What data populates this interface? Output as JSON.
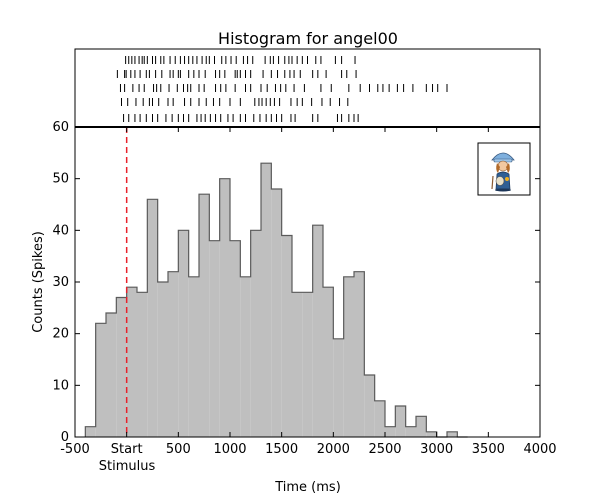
{
  "chart_data": {
    "type": "bar",
    "title": "Histogram for angel00",
    "xlabel": "Time (ms)",
    "ylabel": "Counts (Spikes)",
    "xlim": [
      -500,
      4000
    ],
    "ylim": [
      0,
      60
    ],
    "x_ticks": [
      -500,
      0,
      500,
      1000,
      1500,
      2000,
      2500,
      3000,
      3500,
      4000
    ],
    "x_tick_labels": [
      "-500",
      "Start",
      "500",
      "1000",
      "1500",
      "2000",
      "2500",
      "3000",
      "3500",
      "4000"
    ],
    "y_ticks": [
      0,
      10,
      20,
      30,
      40,
      50,
      60
    ],
    "y_tick_labels": [
      "0",
      "10",
      "20",
      "30",
      "40",
      "50",
      "60"
    ],
    "stimulus_label": "Stimulus",
    "stimulus_x": 0,
    "bin_width": 100,
    "bin_starts": [
      -400,
      -300,
      -200,
      -100,
      0,
      100,
      200,
      300,
      400,
      500,
      600,
      700,
      800,
      900,
      1000,
      1100,
      1200,
      1300,
      1400,
      1500,
      1600,
      1700,
      1800,
      1900,
      2000,
      2100,
      2200,
      2300,
      2400,
      2500,
      2600,
      2700,
      2800,
      2900,
      3000,
      3100,
      3200
    ],
    "values": [
      2,
      22,
      24,
      27,
      29,
      28,
      46,
      30,
      32,
      40,
      31,
      47,
      38,
      50,
      38,
      31,
      40,
      53,
      48,
      39,
      28,
      28,
      41,
      29,
      19,
      31,
      32,
      12,
      7,
      2,
      6,
      2,
      4,
      1,
      0,
      1,
      0
    ],
    "grid": false,
    "colors": {
      "bars": "#bfbfbf",
      "bar_edge": "#5a5a5a",
      "stimulus_line": "#e8202a",
      "raster": "#000000"
    },
    "raster": {
      "trials": [
        [
          -10,
          20,
          50,
          80,
          120,
          150,
          170,
          200,
          250,
          280,
          330,
          360,
          420,
          470,
          520,
          560,
          600,
          640,
          680,
          730,
          770,
          800,
          850,
          920,
          960,
          1010,
          1060,
          1130,
          1170,
          1220,
          1340,
          1390,
          1420,
          1470,
          1530,
          1570,
          1600,
          1650,
          1700,
          1750,
          1830,
          1880,
          2020,
          2080,
          2210
        ],
        [
          -90,
          -20,
          -5,
          40,
          80,
          130,
          190,
          220,
          280,
          340,
          420,
          450,
          500,
          520,
          600,
          650,
          700,
          760,
          860,
          900,
          950,
          1050,
          1070,
          1100,
          1150,
          1200,
          1320,
          1400,
          1460,
          1530,
          1580,
          1620,
          1680,
          1800,
          1850,
          1930,
          2080,
          2130,
          2220
        ],
        [
          -60,
          -20,
          60,
          120,
          170,
          260,
          290,
          330,
          410,
          490,
          550,
          590,
          620,
          700,
          750,
          860,
          910,
          960,
          1050,
          1150,
          1200,
          1300,
          1360,
          1440,
          1490,
          1540,
          1620,
          1720,
          1880,
          1980,
          2150,
          2260,
          2350,
          2430,
          2480,
          2540,
          2620,
          2680,
          2770,
          2900,
          2960,
          3010,
          3100
        ],
        [
          -50,
          10,
          90,
          160,
          220,
          250,
          310,
          400,
          450,
          560,
          620,
          700,
          770,
          840,
          900,
          1000,
          1100,
          1240,
          1280,
          1310,
          1350,
          1390,
          1430,
          1480,
          1590,
          1650,
          1700,
          1790,
          1890,
          1970,
          2060,
          2140
        ],
        [
          -30,
          20,
          80,
          130,
          190,
          250,
          300,
          380,
          440,
          500,
          550,
          600,
          680,
          720,
          760,
          810,
          860,
          910,
          980,
          1030,
          1100,
          1150,
          1230,
          1290,
          1350,
          1400,
          1450,
          1500,
          1590,
          1630,
          1800,
          1850,
          2040,
          2080,
          2150,
          2200,
          2240
        ]
      ]
    }
  }
}
